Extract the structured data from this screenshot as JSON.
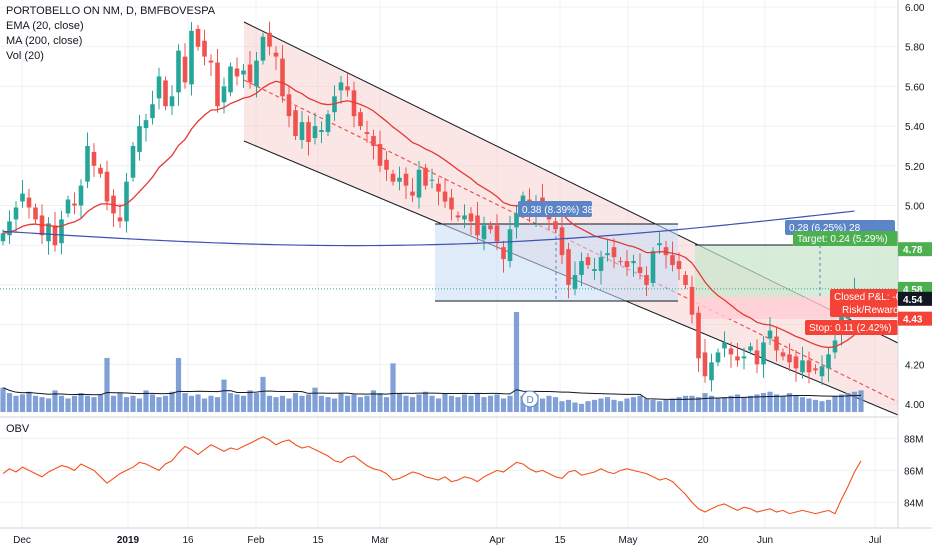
{
  "legend": {
    "symbol": "PORTOBELLO ON NM, D, BMFBOVESPA",
    "ema": "EMA (20, close)",
    "ma": "MA (200, close)",
    "vol": "Vol (20)"
  },
  "obv_label": "OBV",
  "colors": {
    "up": "#26a69a",
    "down": "#ef5350",
    "ema": "#e53935",
    "ma": "#3f51b5",
    "volume": "#6a8fd0",
    "obv": "#f4511e",
    "price_line": "#26a69a",
    "badge_green": "#4caf50",
    "badge_red": "#f44336",
    "measure": "#5c85c7"
  },
  "price_axis": {
    "ticks": [
      "6.00",
      "5.80",
      "5.60",
      "5.40",
      "5.20",
      "5.00",
      "4.78",
      "4.58",
      "4.54",
      "4.43",
      "4.20",
      "4.00"
    ]
  },
  "obv_axis": {
    "ticks": [
      "88M",
      "86M",
      "84M"
    ]
  },
  "time_axis": {
    "ticks": [
      "Dec",
      "2019",
      "16",
      "Feb",
      "15",
      "Mar",
      "Apr",
      "15",
      "May",
      "20",
      "Jun",
      "Jul"
    ]
  },
  "annotations": {
    "measure_1": "0.38 (8.39%) 38",
    "measure_2": "0.28 (6.25%) 28",
    "target": "Target: 0.24 (5.29%)",
    "stop": "Stop: 0.11 (2.42%)",
    "closed_pl": "Closed P&L: -0",
    "risk_reward": "Risk/Reward",
    "dividend_marker": "D"
  },
  "chart_data": {
    "type": "candlestick",
    "title": "PORTOBELLO ON NM, D, BMFBOVESPA",
    "series": [
      {
        "name": "PORTOBELLO ON NM, D, BMFBOVESPA",
        "type": "candlestick",
        "close": [
          4.86,
          4.92,
          4.99,
          5.06,
          4.99,
          4.93,
          4.85,
          4.91,
          4.8,
          4.93,
          5.03,
          5.0,
          5.1,
          5.3,
          5.2,
          5.16,
          5.02,
          4.96,
          4.92,
          5.12,
          5.3,
          5.4,
          5.43,
          5.51,
          5.65,
          5.5,
          5.55,
          5.78,
          5.62,
          5.88,
          5.8,
          5.75,
          5.72,
          5.5,
          5.6,
          5.7,
          5.65,
          5.68,
          5.62,
          5.73,
          5.85,
          5.8,
          5.75,
          5.55,
          5.45,
          5.35,
          5.42,
          5.32,
          5.4,
          5.38,
          5.46,
          5.55,
          5.62,
          5.58,
          5.45,
          5.4,
          5.36,
          5.3,
          5.2,
          5.18,
          5.12,
          5.14,
          5.1,
          5.05,
          5.18,
          5.1,
          5.13,
          5.07,
          5.02,
          4.98,
          4.94,
          4.95,
          4.92,
          4.85,
          4.9,
          4.88,
          4.82,
          4.73,
          4.88,
          4.96,
          5.05,
          4.96,
          5.02,
          4.98,
          4.93,
          4.88,
          4.75,
          4.6,
          4.65,
          4.72,
          4.7,
          4.68,
          4.74,
          4.76,
          4.74,
          4.72,
          4.69,
          4.72,
          4.66,
          4.6,
          4.77,
          4.81,
          4.75,
          4.7,
          4.68,
          4.6,
          4.45,
          4.23,
          4.14,
          4.21,
          4.26,
          4.31,
          4.25,
          4.22,
          4.24,
          4.29,
          4.2,
          4.31,
          4.37,
          4.27,
          4.24,
          4.21,
          4.18,
          4.22,
          4.16,
          4.17,
          4.19,
          4.25,
          4.32,
          4.45,
          4.51,
          4.58
        ]
      },
      {
        "name": "EMA (20, close)",
        "values": "computed"
      },
      {
        "name": "MA (200, close)",
        "values": "computed"
      }
    ],
    "volume": [
      18,
      14,
      12,
      13,
      15,
      12,
      11,
      10,
      16,
      12,
      10,
      12,
      14,
      12,
      11,
      13,
      40,
      12,
      14,
      11,
      12,
      10,
      16,
      13,
      11,
      12,
      15,
      40,
      14,
      12,
      13,
      10,
      12,
      11,
      24,
      14,
      13,
      12,
      16,
      14,
      26,
      12,
      11,
      12,
      10,
      14,
      12,
      13,
      18,
      12,
      11,
      10,
      14,
      12,
      13,
      11,
      12,
      16,
      14,
      11,
      36,
      14,
      12,
      11,
      13,
      15,
      12,
      10,
      14,
      12,
      11,
      13,
      12,
      14,
      11,
      12,
      13,
      10,
      12,
      74,
      12,
      11,
      13,
      10,
      12,
      11,
      8,
      9,
      7,
      6,
      8,
      9,
      10,
      11,
      9,
      8,
      10,
      11,
      12,
      10,
      9,
      8,
      9,
      10,
      11,
      12,
      12,
      11,
      14,
      12,
      10,
      11,
      12,
      13,
      11,
      12,
      13,
      14,
      15,
      13,
      12,
      14,
      12,
      11,
      10,
      9,
      8,
      9,
      12,
      13,
      14,
      15,
      16
    ],
    "obv": [
      85.8,
      86.1,
      85.9,
      86.2,
      86.0,
      85.8,
      85.6,
      85.9,
      86.1,
      86.3,
      86.2,
      86.0,
      86.4,
      86.2,
      86.0,
      85.6,
      85.2,
      85.5,
      85.8,
      86.0,
      86.2,
      86.5,
      86.4,
      86.2,
      86.0,
      86.4,
      86.6,
      87.1,
      87.5,
      87.3,
      87.0,
      87.3,
      87.6,
      87.4,
      87.2,
      87.4,
      87.3,
      87.5,
      87.7,
      87.9,
      88.1,
      87.9,
      87.6,
      87.8,
      87.9,
      87.6,
      87.4,
      87.5,
      87.3,
      87.1,
      86.9,
      86.6,
      86.5,
      86.8,
      86.9,
      86.6,
      86.3,
      86.1,
      86.0,
      85.8,
      85.4,
      85.5,
      85.7,
      85.9,
      85.8,
      85.6,
      85.5,
      85.4,
      85.6,
      85.3,
      85.4,
      85.6,
      85.5,
      85.3,
      85.6,
      85.8,
      86.0,
      85.9,
      86.2,
      86.5,
      86.4,
      86.1,
      85.9,
      86.0,
      85.8,
      85.6,
      85.5,
      85.9,
      86.0,
      85.7,
      85.8,
      85.9,
      86.1,
      85.9,
      85.8,
      86.0,
      86.1,
      86.0,
      85.9,
      85.8,
      85.6,
      85.4,
      85.5,
      85.3,
      84.9,
      84.5,
      84.0,
      83.6,
      83.4,
      83.6,
      83.8,
      83.9,
      83.7,
      83.5,
      83.7,
      83.6,
      83.4,
      83.5,
      83.6,
      83.4,
      83.5,
      83.3,
      83.4,
      83.5,
      83.4,
      83.3,
      83.4,
      83.5,
      83.3,
      84.2,
      85.0,
      85.9,
      86.6
    ],
    "xlabel": "",
    "ylabel": "",
    "price_range": [
      3.97,
      6.02
    ],
    "obv_range": [
      82.9,
      88.9
    ],
    "x_ticks": [
      "Dec",
      "2019",
      "16",
      "Feb",
      "15",
      "Mar",
      "Apr",
      "15",
      "May",
      "20",
      "Jun",
      "Jul"
    ],
    "price_ticks": [
      "6.00",
      "5.80",
      "5.60",
      "5.40",
      "5.20",
      "5.00",
      "4.78",
      "4.58",
      "4.54",
      "4.43",
      "4.20",
      "4.00"
    ],
    "obv_ticks": [
      "88M",
      "86M",
      "84M"
    ],
    "grid": true
  }
}
